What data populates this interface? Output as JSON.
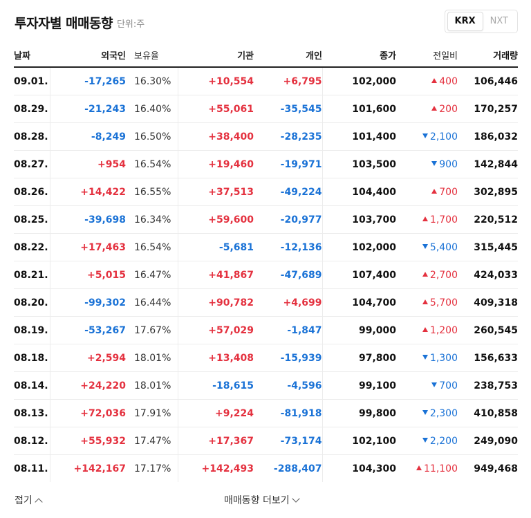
{
  "header": {
    "title": "투자자별 매매동향",
    "unit": "단위:주"
  },
  "market_toggle": {
    "krx": "KRX",
    "nxt": "NXT",
    "selected": "KRX"
  },
  "columns": {
    "date": "날짜",
    "foreign": "외국인",
    "ownership": "보유율",
    "institution": "기관",
    "individual": "개인",
    "close": "종가",
    "change": "전일비",
    "volume": "거래량"
  },
  "rows": [
    {
      "date": "09.01.",
      "foreign": "-17,265",
      "ownership": "16.30%",
      "institution": "+10,554",
      "individual": "+6,795",
      "close": "102,000",
      "change": "400",
      "change_dir": "up",
      "volume": "106,446"
    },
    {
      "date": "08.29.",
      "foreign": "-21,243",
      "ownership": "16.40%",
      "institution": "+55,061",
      "individual": "-35,545",
      "close": "101,600",
      "change": "200",
      "change_dir": "up",
      "volume": "170,257"
    },
    {
      "date": "08.28.",
      "foreign": "-8,249",
      "ownership": "16.50%",
      "institution": "+38,400",
      "individual": "-28,235",
      "close": "101,400",
      "change": "2,100",
      "change_dir": "down",
      "volume": "186,032"
    },
    {
      "date": "08.27.",
      "foreign": "+954",
      "ownership": "16.54%",
      "institution": "+19,460",
      "individual": "-19,971",
      "close": "103,500",
      "change": "900",
      "change_dir": "down",
      "volume": "142,844"
    },
    {
      "date": "08.26.",
      "foreign": "+14,422",
      "ownership": "16.55%",
      "institution": "+37,513",
      "individual": "-49,224",
      "close": "104,400",
      "change": "700",
      "change_dir": "up",
      "volume": "302,895"
    },
    {
      "date": "08.25.",
      "foreign": "-39,698",
      "ownership": "16.34%",
      "institution": "+59,600",
      "individual": "-20,977",
      "close": "103,700",
      "change": "1,700",
      "change_dir": "up",
      "volume": "220,512"
    },
    {
      "date": "08.22.",
      "foreign": "+17,463",
      "ownership": "16.54%",
      "institution": "-5,681",
      "individual": "-12,136",
      "close": "102,000",
      "change": "5,400",
      "change_dir": "down",
      "volume": "315,445"
    },
    {
      "date": "08.21.",
      "foreign": "+5,015",
      "ownership": "16.47%",
      "institution": "+41,867",
      "individual": "-47,689",
      "close": "107,400",
      "change": "2,700",
      "change_dir": "up",
      "volume": "424,033"
    },
    {
      "date": "08.20.",
      "foreign": "-99,302",
      "ownership": "16.44%",
      "institution": "+90,782",
      "individual": "+4,699",
      "close": "104,700",
      "change": "5,700",
      "change_dir": "up",
      "volume": "409,318"
    },
    {
      "date": "08.19.",
      "foreign": "-53,267",
      "ownership": "17.67%",
      "institution": "+57,029",
      "individual": "-1,847",
      "close": "99,000",
      "change": "1,200",
      "change_dir": "up",
      "volume": "260,545"
    },
    {
      "date": "08.18.",
      "foreign": "+2,594",
      "ownership": "18.01%",
      "institution": "+13,408",
      "individual": "-15,939",
      "close": "97,800",
      "change": "1,300",
      "change_dir": "down",
      "volume": "156,633"
    },
    {
      "date": "08.14.",
      "foreign": "+24,220",
      "ownership": "18.01%",
      "institution": "-18,615",
      "individual": "-4,596",
      "close": "99,100",
      "change": "700",
      "change_dir": "down",
      "volume": "238,753"
    },
    {
      "date": "08.13.",
      "foreign": "+72,036",
      "ownership": "17.91%",
      "institution": "+9,224",
      "individual": "-81,918",
      "close": "99,800",
      "change": "2,300",
      "change_dir": "down",
      "volume": "410,858"
    },
    {
      "date": "08.12.",
      "foreign": "+55,932",
      "ownership": "17.47%",
      "institution": "+17,367",
      "individual": "-73,174",
      "close": "102,100",
      "change": "2,200",
      "change_dir": "down",
      "volume": "249,090"
    },
    {
      "date": "08.11.",
      "foreign": "+142,167",
      "ownership": "17.17%",
      "institution": "+142,493",
      "individual": "-288,407",
      "close": "104,300",
      "change": "11,100",
      "change_dir": "up",
      "volume": "949,468"
    }
  ],
  "footer": {
    "fold_label": "접기",
    "more_label": "매매동향 더보기"
  },
  "colors": {
    "up": "#e4313f",
    "down": "#1a72d6"
  },
  "icons": {
    "fold": "chevron-up-icon",
    "more": "chevron-down-icon",
    "rise": "triangle-up-icon",
    "fall": "triangle-down-icon"
  }
}
